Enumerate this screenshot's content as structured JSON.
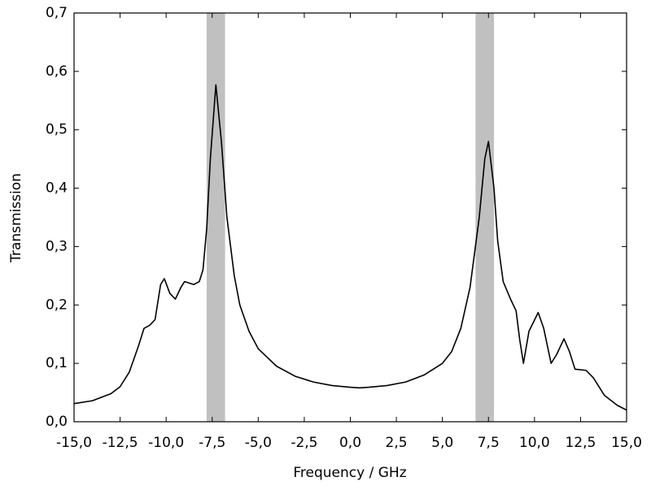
{
  "chart_data": {
    "type": "line",
    "x_label": "Frequency / GHz",
    "y_label": "Transmission",
    "xlim": [
      -15,
      15
    ],
    "ylim": [
      0,
      0.7
    ],
    "xticks": [
      {
        "value": -15,
        "label": "-15,0"
      },
      {
        "value": -12.5,
        "label": "-12,5"
      },
      {
        "value": -10,
        "label": "-10,0"
      },
      {
        "value": -7.5,
        "label": "-7,5"
      },
      {
        "value": -5,
        "label": "-5,0"
      },
      {
        "value": -2.5,
        "label": "-2,5"
      },
      {
        "value": 0,
        "label": "0,0"
      },
      {
        "value": 2.5,
        "label": "2,5"
      },
      {
        "value": 5,
        "label": "5,0"
      },
      {
        "value": 7.5,
        "label": "7,5"
      },
      {
        "value": 10,
        "label": "10,0"
      },
      {
        "value": 12.5,
        "label": "12,5"
      },
      {
        "value": 15,
        "label": "15,0"
      }
    ],
    "yticks": [
      {
        "value": 0,
        "label": "0,0"
      },
      {
        "value": 0.1,
        "label": "0,1"
      },
      {
        "value": 0.2,
        "label": "0,2"
      },
      {
        "value": 0.3,
        "label": "0,3"
      },
      {
        "value": 0.4,
        "label": "0,4"
      },
      {
        "value": 0.5,
        "label": "0,5"
      },
      {
        "value": 0.6,
        "label": "0,6"
      },
      {
        "value": 0.7,
        "label": "0,7"
      }
    ],
    "bands": [
      [
        -7.8,
        -6.8
      ],
      [
        6.8,
        7.8
      ]
    ],
    "band_color": "#c0c0c0",
    "x": [
      -15,
      -14,
      -13,
      -12.5,
      -12,
      -11.5,
      -11.2,
      -10.9,
      -10.6,
      -10.3,
      -10.1,
      -9.8,
      -9.5,
      -9.2,
      -9.0,
      -8.5,
      -8.2,
      -8.0,
      -7.8,
      -7.6,
      -7.3,
      -7.0,
      -6.7,
      -6.3,
      -6.0,
      -5.5,
      -5.0,
      -4.0,
      -3.0,
      -2.0,
      -1.0,
      0,
      0.5,
      1.0,
      2.0,
      3.0,
      4.0,
      5.0,
      5.5,
      6.0,
      6.5,
      7.0,
      7.3,
      7.5,
      7.8,
      8.0,
      8.3,
      8.7,
      9.0,
      9.2,
      9.4,
      9.7,
      10.2,
      10.5,
      10.9,
      11.2,
      11.6,
      11.9,
      12.2,
      12.8,
      13.2,
      13.8,
      14.5,
      15
    ],
    "series": [
      {
        "name": "Transmission",
        "color": "#000000",
        "values": [
          0.031,
          0.036,
          0.048,
          0.06,
          0.085,
          0.13,
          0.16,
          0.165,
          0.175,
          0.235,
          0.245,
          0.22,
          0.21,
          0.23,
          0.24,
          0.235,
          0.24,
          0.26,
          0.33,
          0.45,
          0.577,
          0.48,
          0.35,
          0.25,
          0.2,
          0.155,
          0.125,
          0.095,
          0.078,
          0.068,
          0.062,
          0.059,
          0.058,
          0.059,
          0.062,
          0.068,
          0.08,
          0.1,
          0.12,
          0.16,
          0.23,
          0.35,
          0.45,
          0.48,
          0.4,
          0.31,
          0.24,
          0.21,
          0.19,
          0.14,
          0.1,
          0.155,
          0.187,
          0.16,
          0.1,
          0.115,
          0.142,
          0.12,
          0.09,
          0.088,
          0.075,
          0.045,
          0.028,
          0.02
        ]
      }
    ]
  }
}
